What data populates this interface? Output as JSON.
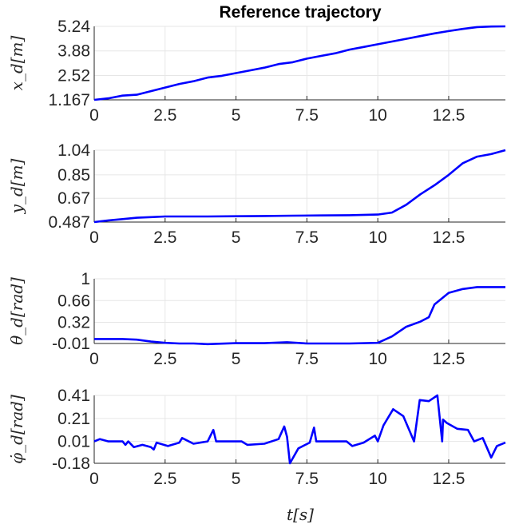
{
  "chart_data": [
    {
      "type": "line",
      "title": "Reference trajectory",
      "ylabel": "x_d[m]",
      "xlim": [
        0,
        14.5
      ],
      "ylim": [
        1.167,
        5.24
      ],
      "xticks": [
        "0",
        "2.5",
        "5",
        "7.5",
        "10",
        "12.5"
      ],
      "yticks": [
        "1.167",
        "2.52",
        "3.88",
        "5.24"
      ],
      "grid": true,
      "color": "#0000ff",
      "x": [
        0,
        0.5,
        1,
        1.5,
        2,
        2.5,
        3,
        3.5,
        4,
        4.5,
        5,
        5.5,
        6,
        6.5,
        7,
        7.5,
        8,
        8.5,
        9,
        9.5,
        10,
        10.5,
        11,
        11.5,
        12,
        12.5,
        13,
        13.5,
        14,
        14.5
      ],
      "y": [
        1.167,
        1.25,
        1.4,
        1.45,
        1.65,
        1.85,
        2.05,
        2.2,
        2.4,
        2.5,
        2.65,
        2.8,
        2.95,
        3.15,
        3.25,
        3.45,
        3.6,
        3.75,
        3.95,
        4.1,
        4.25,
        4.4,
        4.55,
        4.7,
        4.85,
        4.98,
        5.1,
        5.2,
        5.23,
        5.24
      ]
    },
    {
      "type": "line",
      "ylabel": "y_d[m]",
      "xlim": [
        0,
        14.5
      ],
      "ylim": [
        0.487,
        1.04
      ],
      "xticks": [
        "0",
        "2.5",
        "5",
        "7.5",
        "10",
        "12.5"
      ],
      "yticks": [
        "0.487",
        "0.67",
        "0.85",
        "1.04"
      ],
      "grid": true,
      "color": "#0000ff",
      "x": [
        0,
        0.5,
        1,
        1.5,
        2,
        2.5,
        3,
        4,
        5,
        6,
        7,
        8,
        9,
        10,
        10.5,
        11,
        11.5,
        12,
        12.5,
        13,
        13.5,
        14,
        14.5
      ],
      "y": [
        0.487,
        0.5,
        0.51,
        0.52,
        0.525,
        0.53,
        0.53,
        0.53,
        0.532,
        0.534,
        0.536,
        0.538,
        0.54,
        0.545,
        0.56,
        0.62,
        0.7,
        0.77,
        0.85,
        0.94,
        0.99,
        1.01,
        1.04
      ]
    },
    {
      "type": "line",
      "ylabel": "θ_d[rad]",
      "xlim": [
        0,
        14.5
      ],
      "ylim": [
        -0.01,
        1
      ],
      "xticks": [
        "0",
        "2.5",
        "5",
        "7.5",
        "10",
        "12.5"
      ],
      "yticks": [
        "-0.01",
        "0.32",
        "0.66",
        "1"
      ],
      "grid": true,
      "color": "#0000ff",
      "x": [
        0,
        1,
        1.5,
        2,
        2.5,
        3,
        3.5,
        4,
        5,
        6,
        6.8,
        7.5,
        9,
        10,
        10.5,
        11,
        11.5,
        11.8,
        12,
        12.5,
        13,
        13.5,
        14.5
      ],
      "y": [
        0.06,
        0.06,
        0.05,
        0.02,
        0.0,
        -0.01,
        -0.01,
        -0.02,
        -0.005,
        -0.005,
        0.01,
        -0.01,
        -0.01,
        0.0,
        0.1,
        0.25,
        0.33,
        0.4,
        0.6,
        0.78,
        0.84,
        0.87,
        0.87
      ]
    },
    {
      "type": "line",
      "ylabel": "φ̇_d[rad]",
      "xlabel": "t[s]",
      "xlim": [
        0,
        14.5
      ],
      "ylim": [
        -0.18,
        0.41
      ],
      "xticks": [
        "0",
        "2.5",
        "5",
        "7.5",
        "10",
        "12.5"
      ],
      "yticks": [
        "-0.18",
        "0.01",
        "0.21",
        "0.41"
      ],
      "grid": true,
      "color": "#0000ff",
      "x": [
        0,
        0.2,
        0.5,
        1,
        1.1,
        1.2,
        1.4,
        1.7,
        2,
        2.1,
        2.2,
        2.6,
        3,
        3.1,
        3.5,
        4,
        4.2,
        4.3,
        5.2,
        5.4,
        6,
        6.5,
        6.7,
        6.8,
        6.9,
        7.2,
        7.6,
        7.75,
        7.83,
        8.9,
        9.1,
        9.5,
        9.9,
        10,
        10.2,
        10.54,
        10.9,
        11.28,
        11.48,
        11.8,
        12.1,
        12.27,
        12.3,
        12.44,
        12.8,
        13.18,
        13.4,
        13.7,
        14.0,
        14.2,
        14.5
      ],
      "y": [
        0.01,
        0.03,
        0.01,
        0.01,
        -0.02,
        0.01,
        -0.04,
        -0.02,
        -0.04,
        -0.06,
        0.0,
        -0.03,
        0.0,
        0.04,
        -0.01,
        0.01,
        0.11,
        0.01,
        0.01,
        -0.02,
        -0.01,
        0.03,
        0.14,
        0.05,
        -0.18,
        -0.05,
        0.0,
        0.13,
        0.01,
        0.01,
        -0.03,
        0.0,
        0.06,
        0.01,
        0.15,
        0.29,
        0.23,
        0.01,
        0.37,
        0.36,
        0.41,
        0.01,
        0.2,
        0.17,
        0.12,
        0.11,
        0.01,
        0.04,
        -0.13,
        -0.03,
        0.0
      ]
    }
  ]
}
